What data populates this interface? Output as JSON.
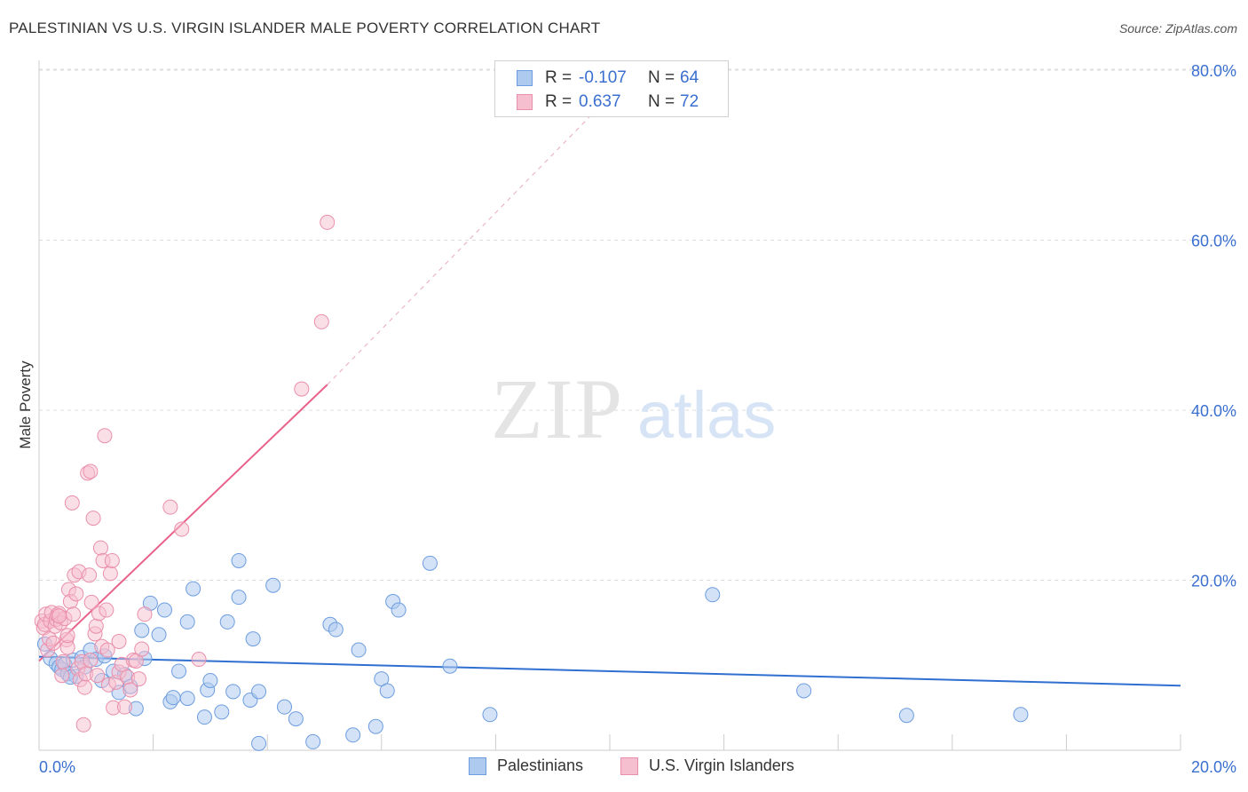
{
  "title": "PALESTINIAN VS U.S. VIRGIN ISLANDER MALE POVERTY CORRELATION CHART",
  "source": "Source: ZipAtlas.com",
  "watermark": {
    "zip": "ZIP",
    "atlas": "atlas"
  },
  "legend": {
    "series1": {
      "r_label": "R =",
      "r_value": "-0.107",
      "n_label": "N =",
      "n_value": "64"
    },
    "series2": {
      "r_label": "R =",
      "r_value": "0.637",
      "n_label": "N =",
      "n_value": "72"
    }
  },
  "colors": {
    "blue_fill": "#aecbef",
    "blue_stroke": "#6d9de0",
    "blue_line": "#2f6fd0",
    "pink_fill": "#f6bfd0",
    "pink_stroke": "#ea8fab",
    "pink_line": "#e8628a",
    "grid": "#dddddd",
    "axis_text": "#3a6fd0"
  },
  "chart_data": {
    "type": "scatter",
    "title": "PALESTINIAN VS U.S. VIRGIN ISLANDER MALE POVERTY CORRELATION CHART",
    "xlabel": "",
    "ylabel": "Male Poverty",
    "xlim": [
      0,
      20
    ],
    "ylim": [
      0,
      80
    ],
    "x_tick_labels": [
      "0.0%",
      "20.0%"
    ],
    "y_ticks": [
      20,
      40,
      60,
      80
    ],
    "y_tick_labels": [
      "20.0%",
      "40.0%",
      "60.0%",
      "80.0%"
    ],
    "grid": true,
    "series": [
      {
        "name": "Palestinians",
        "trend": {
          "x": [
            0,
            20
          ],
          "y": [
            11.0,
            7.6
          ],
          "dashed_extension": false
        },
        "points": [
          [
            0.1,
            12.5
          ],
          [
            0.2,
            10.8
          ],
          [
            0.3,
            10.2
          ],
          [
            0.35,
            9.8
          ],
          [
            0.4,
            9.5
          ],
          [
            0.45,
            10.1
          ],
          [
            0.5,
            9.0
          ],
          [
            0.6,
            10.6
          ],
          [
            0.65,
            8.7
          ],
          [
            0.75,
            10.9
          ],
          [
            0.8,
            9.8
          ],
          [
            0.9,
            11.8
          ],
          [
            1.0,
            10.7
          ],
          [
            1.1,
            8.2
          ],
          [
            1.15,
            11.1
          ],
          [
            1.3,
            9.3
          ],
          [
            1.4,
            6.8
          ],
          [
            1.5,
            8.9
          ],
          [
            1.6,
            7.5
          ],
          [
            1.7,
            4.9
          ],
          [
            1.8,
            14.1
          ],
          [
            1.85,
            10.8
          ],
          [
            1.95,
            17.3
          ],
          [
            2.1,
            13.6
          ],
          [
            2.2,
            16.5
          ],
          [
            2.3,
            5.7
          ],
          [
            2.35,
            6.2
          ],
          [
            2.45,
            9.3
          ],
          [
            2.6,
            6.1
          ],
          [
            2.6,
            15.1
          ],
          [
            2.7,
            19.0
          ],
          [
            2.9,
            3.9
          ],
          [
            2.95,
            7.1
          ],
          [
            3.0,
            8.2
          ],
          [
            3.2,
            4.5
          ],
          [
            3.3,
            15.1
          ],
          [
            3.4,
            6.9
          ],
          [
            3.5,
            22.3
          ],
          [
            3.5,
            18.0
          ],
          [
            3.7,
            5.9
          ],
          [
            3.75,
            13.1
          ],
          [
            3.85,
            6.9
          ],
          [
            3.85,
            0.8
          ],
          [
            4.1,
            19.4
          ],
          [
            4.3,
            5.1
          ],
          [
            4.5,
            3.7
          ],
          [
            4.8,
            1.0
          ],
          [
            5.1,
            14.8
          ],
          [
            5.2,
            14.2
          ],
          [
            5.5,
            1.8
          ],
          [
            5.6,
            11.8
          ],
          [
            5.9,
            2.8
          ],
          [
            6.0,
            8.4
          ],
          [
            6.1,
            7.0
          ],
          [
            6.2,
            17.5
          ],
          [
            6.3,
            16.5
          ],
          [
            6.85,
            22.0
          ],
          [
            7.2,
            9.9
          ],
          [
            7.9,
            4.2
          ],
          [
            11.8,
            18.3
          ],
          [
            13.4,
            7.0
          ],
          [
            15.2,
            4.1
          ],
          [
            17.2,
            4.2
          ],
          [
            0.55,
            8.6
          ]
        ]
      },
      {
        "name": "U.S. Virgin Islanders",
        "trend": {
          "x": [
            0,
            5.05
          ],
          "y": [
            10.5,
            43.0
          ],
          "dashed_to": [
            10.3,
            79.0
          ]
        },
        "points": [
          [
            0.05,
            15.2
          ],
          [
            0.08,
            14.4
          ],
          [
            0.1,
            14.8
          ],
          [
            0.12,
            16.0
          ],
          [
            0.15,
            11.8
          ],
          [
            0.18,
            13.1
          ],
          [
            0.2,
            15.2
          ],
          [
            0.22,
            16.2
          ],
          [
            0.25,
            12.6
          ],
          [
            0.28,
            14.6
          ],
          [
            0.3,
            15.4
          ],
          [
            0.32,
            15.9
          ],
          [
            0.35,
            16.1
          ],
          [
            0.38,
            15.0
          ],
          [
            0.4,
            8.8
          ],
          [
            0.42,
            10.4
          ],
          [
            0.45,
            15.5
          ],
          [
            0.48,
            13.0
          ],
          [
            0.5,
            12.1
          ],
          [
            0.52,
            18.9
          ],
          [
            0.55,
            17.5
          ],
          [
            0.58,
            29.1
          ],
          [
            0.6,
            16.0
          ],
          [
            0.62,
            20.6
          ],
          [
            0.65,
            18.4
          ],
          [
            0.68,
            9.6
          ],
          [
            0.7,
            21.0
          ],
          [
            0.72,
            8.3
          ],
          [
            0.75,
            10.4
          ],
          [
            0.78,
            3.0
          ],
          [
            0.8,
            7.4
          ],
          [
            0.82,
            9.0
          ],
          [
            0.85,
            32.6
          ],
          [
            0.88,
            20.6
          ],
          [
            0.9,
            32.8
          ],
          [
            0.92,
            17.4
          ],
          [
            0.95,
            27.3
          ],
          [
            0.98,
            13.7
          ],
          [
            1.0,
            14.6
          ],
          [
            1.02,
            8.8
          ],
          [
            1.05,
            16.1
          ],
          [
            1.08,
            23.8
          ],
          [
            1.1,
            12.2
          ],
          [
            1.12,
            22.3
          ],
          [
            1.15,
            37.0
          ],
          [
            1.18,
            16.5
          ],
          [
            1.2,
            11.8
          ],
          [
            1.22,
            7.7
          ],
          [
            1.25,
            20.8
          ],
          [
            1.28,
            22.3
          ],
          [
            1.3,
            5.0
          ],
          [
            1.35,
            8.0
          ],
          [
            1.4,
            9.2
          ],
          [
            1.45,
            10.1
          ],
          [
            1.5,
            5.1
          ],
          [
            1.55,
            8.6
          ],
          [
            1.6,
            7.1
          ],
          [
            1.65,
            10.6
          ],
          [
            1.7,
            10.5
          ],
          [
            1.75,
            8.4
          ],
          [
            1.8,
            11.9
          ],
          [
            1.85,
            16.0
          ],
          [
            2.3,
            28.6
          ],
          [
            2.5,
            26.0
          ],
          [
            2.8,
            10.7
          ],
          [
            4.6,
            42.5
          ],
          [
            4.95,
            50.4
          ],
          [
            5.05,
            62.1
          ],
          [
            0.35,
            15.8
          ],
          [
            0.5,
            13.5
          ],
          [
            0.9,
            10.6
          ],
          [
            1.4,
            12.8
          ]
        ]
      }
    ]
  },
  "bottom_legend": {
    "series1": "Palestinians",
    "series2": "U.S. Virgin Islanders"
  }
}
